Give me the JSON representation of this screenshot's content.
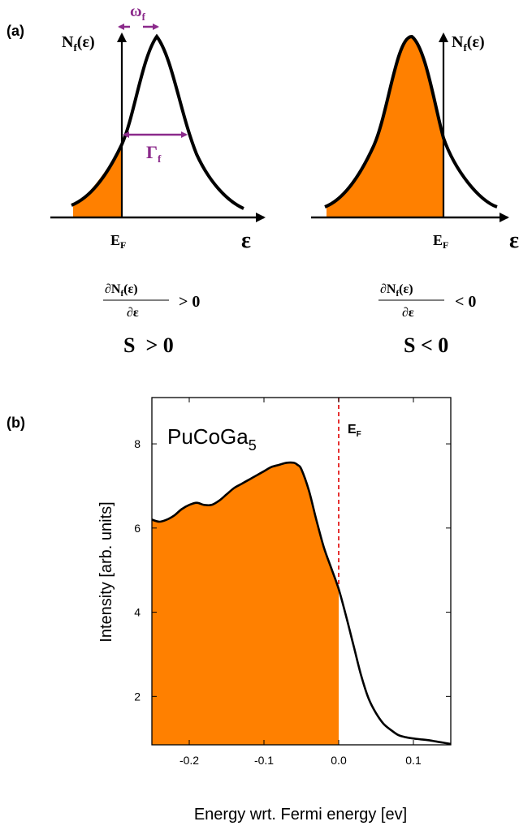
{
  "panel_a": {
    "label": "(a)",
    "left": {
      "dos_label": "N",
      "dos_sub": "f",
      "dos_arg": "(ε)",
      "omega_label": "ω",
      "omega_sub": "f",
      "gamma_label": "Γ",
      "gamma_sub": "f",
      "fermi_label": "E",
      "fermi_sub": "F",
      "axis_label": "ε",
      "deriv_num": "∂N",
      "deriv_num_sub": "f",
      "deriv_num_arg": "(ε)",
      "deriv_den": "∂ε",
      "deriv_sign": "> 0",
      "seebeck": "S  > 0"
    },
    "right": {
      "dos_label": "N",
      "dos_sub": "f",
      "dos_arg": "(ε)",
      "fermi_label": "E",
      "fermi_sub": "F",
      "axis_label": "ε",
      "deriv_num": "∂N",
      "deriv_num_sub": "f",
      "deriv_num_arg": "(ε)",
      "deriv_den": "∂ε",
      "deriv_sign": "< 0",
      "seebeck": "S < 0"
    },
    "colors": {
      "fill": "#ff8000",
      "arrow": "#8b2a8b",
      "curve": "#000000"
    }
  },
  "panel_b": {
    "label": "(b)",
    "compound": "PuCoGa",
    "compound_sub": "5",
    "fermi_label": "E",
    "fermi_sub": "F",
    "colors": {
      "fill": "#ff8000",
      "fermi_line": "#e00000"
    }
  },
  "chart_data": {
    "type": "area",
    "title": "",
    "xlabel": "Energy wrt. Fermi energy [ev]",
    "ylabel": "Intensity [arb. units]",
    "xlim": [
      -0.25,
      0.15
    ],
    "ylim": [
      0.85,
      9.1
    ],
    "xticks": [
      -0.2,
      -0.1,
      0.0,
      0.1
    ],
    "xtick_labels": [
      "-0.2",
      "-0.1",
      "0.0",
      "0.1"
    ],
    "yticks": [
      2,
      4,
      6,
      8
    ],
    "ytick_labels": [
      "2",
      "4",
      "6",
      "8"
    ],
    "grid": false,
    "series": [
      {
        "x": [
          -0.25,
          -0.24,
          -0.23,
          -0.22,
          -0.21,
          -0.2,
          -0.19,
          -0.18,
          -0.17,
          -0.16,
          -0.15,
          -0.14,
          -0.13,
          -0.12,
          -0.11,
          -0.1,
          -0.09,
          -0.08,
          -0.07,
          -0.06,
          -0.055,
          -0.05,
          -0.04,
          -0.03,
          -0.02,
          -0.01,
          0.0,
          0.01,
          0.02,
          0.03,
          0.04,
          0.05,
          0.06,
          0.07,
          0.08,
          0.09,
          0.1,
          0.11,
          0.12,
          0.13,
          0.14,
          0.15
        ],
        "y": [
          6.2,
          6.15,
          6.2,
          6.3,
          6.45,
          6.55,
          6.6,
          6.55,
          6.55,
          6.65,
          6.8,
          6.95,
          7.05,
          7.15,
          7.25,
          7.35,
          7.45,
          7.5,
          7.55,
          7.55,
          7.5,
          7.4,
          6.9,
          6.2,
          5.55,
          5.05,
          4.55,
          3.9,
          3.2,
          2.5,
          1.95,
          1.6,
          1.35,
          1.2,
          1.08,
          1.03,
          1.0,
          0.98,
          0.96,
          0.93,
          0.9,
          0.87
        ]
      }
    ],
    "fermi_energy": 0.0,
    "filled_below_x": 0.0
  }
}
